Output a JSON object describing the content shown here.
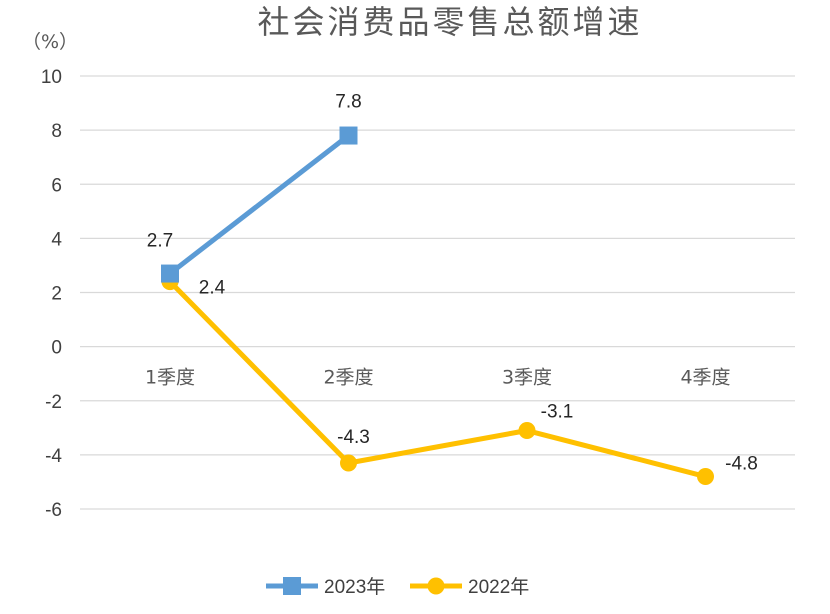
{
  "chart_data": {
    "type": "line",
    "title": "社会消费品零售总额增速",
    "ylabel": "（%）",
    "ylim": [
      -6,
      10
    ],
    "yticks": [
      10,
      8,
      6,
      4,
      2,
      0,
      -2,
      -4,
      -6
    ],
    "grid": true,
    "legend_position": "bottom",
    "categories": [
      "1季度",
      "2季度",
      "3季度",
      "4季度"
    ],
    "series": [
      {
        "name": "2023年",
        "values": [
          2.7,
          7.8,
          null,
          null
        ],
        "labels": [
          "2.7",
          "7.8",
          "",
          ""
        ],
        "color": "#5b9bd5",
        "marker": "square"
      },
      {
        "name": "2022年",
        "values": [
          2.4,
          -4.3,
          -3.1,
          -4.8
        ],
        "labels": [
          "2.4",
          "-4.3",
          "-3.1",
          "-4.8"
        ],
        "color": "#ffc000",
        "marker": "circle"
      }
    ]
  }
}
